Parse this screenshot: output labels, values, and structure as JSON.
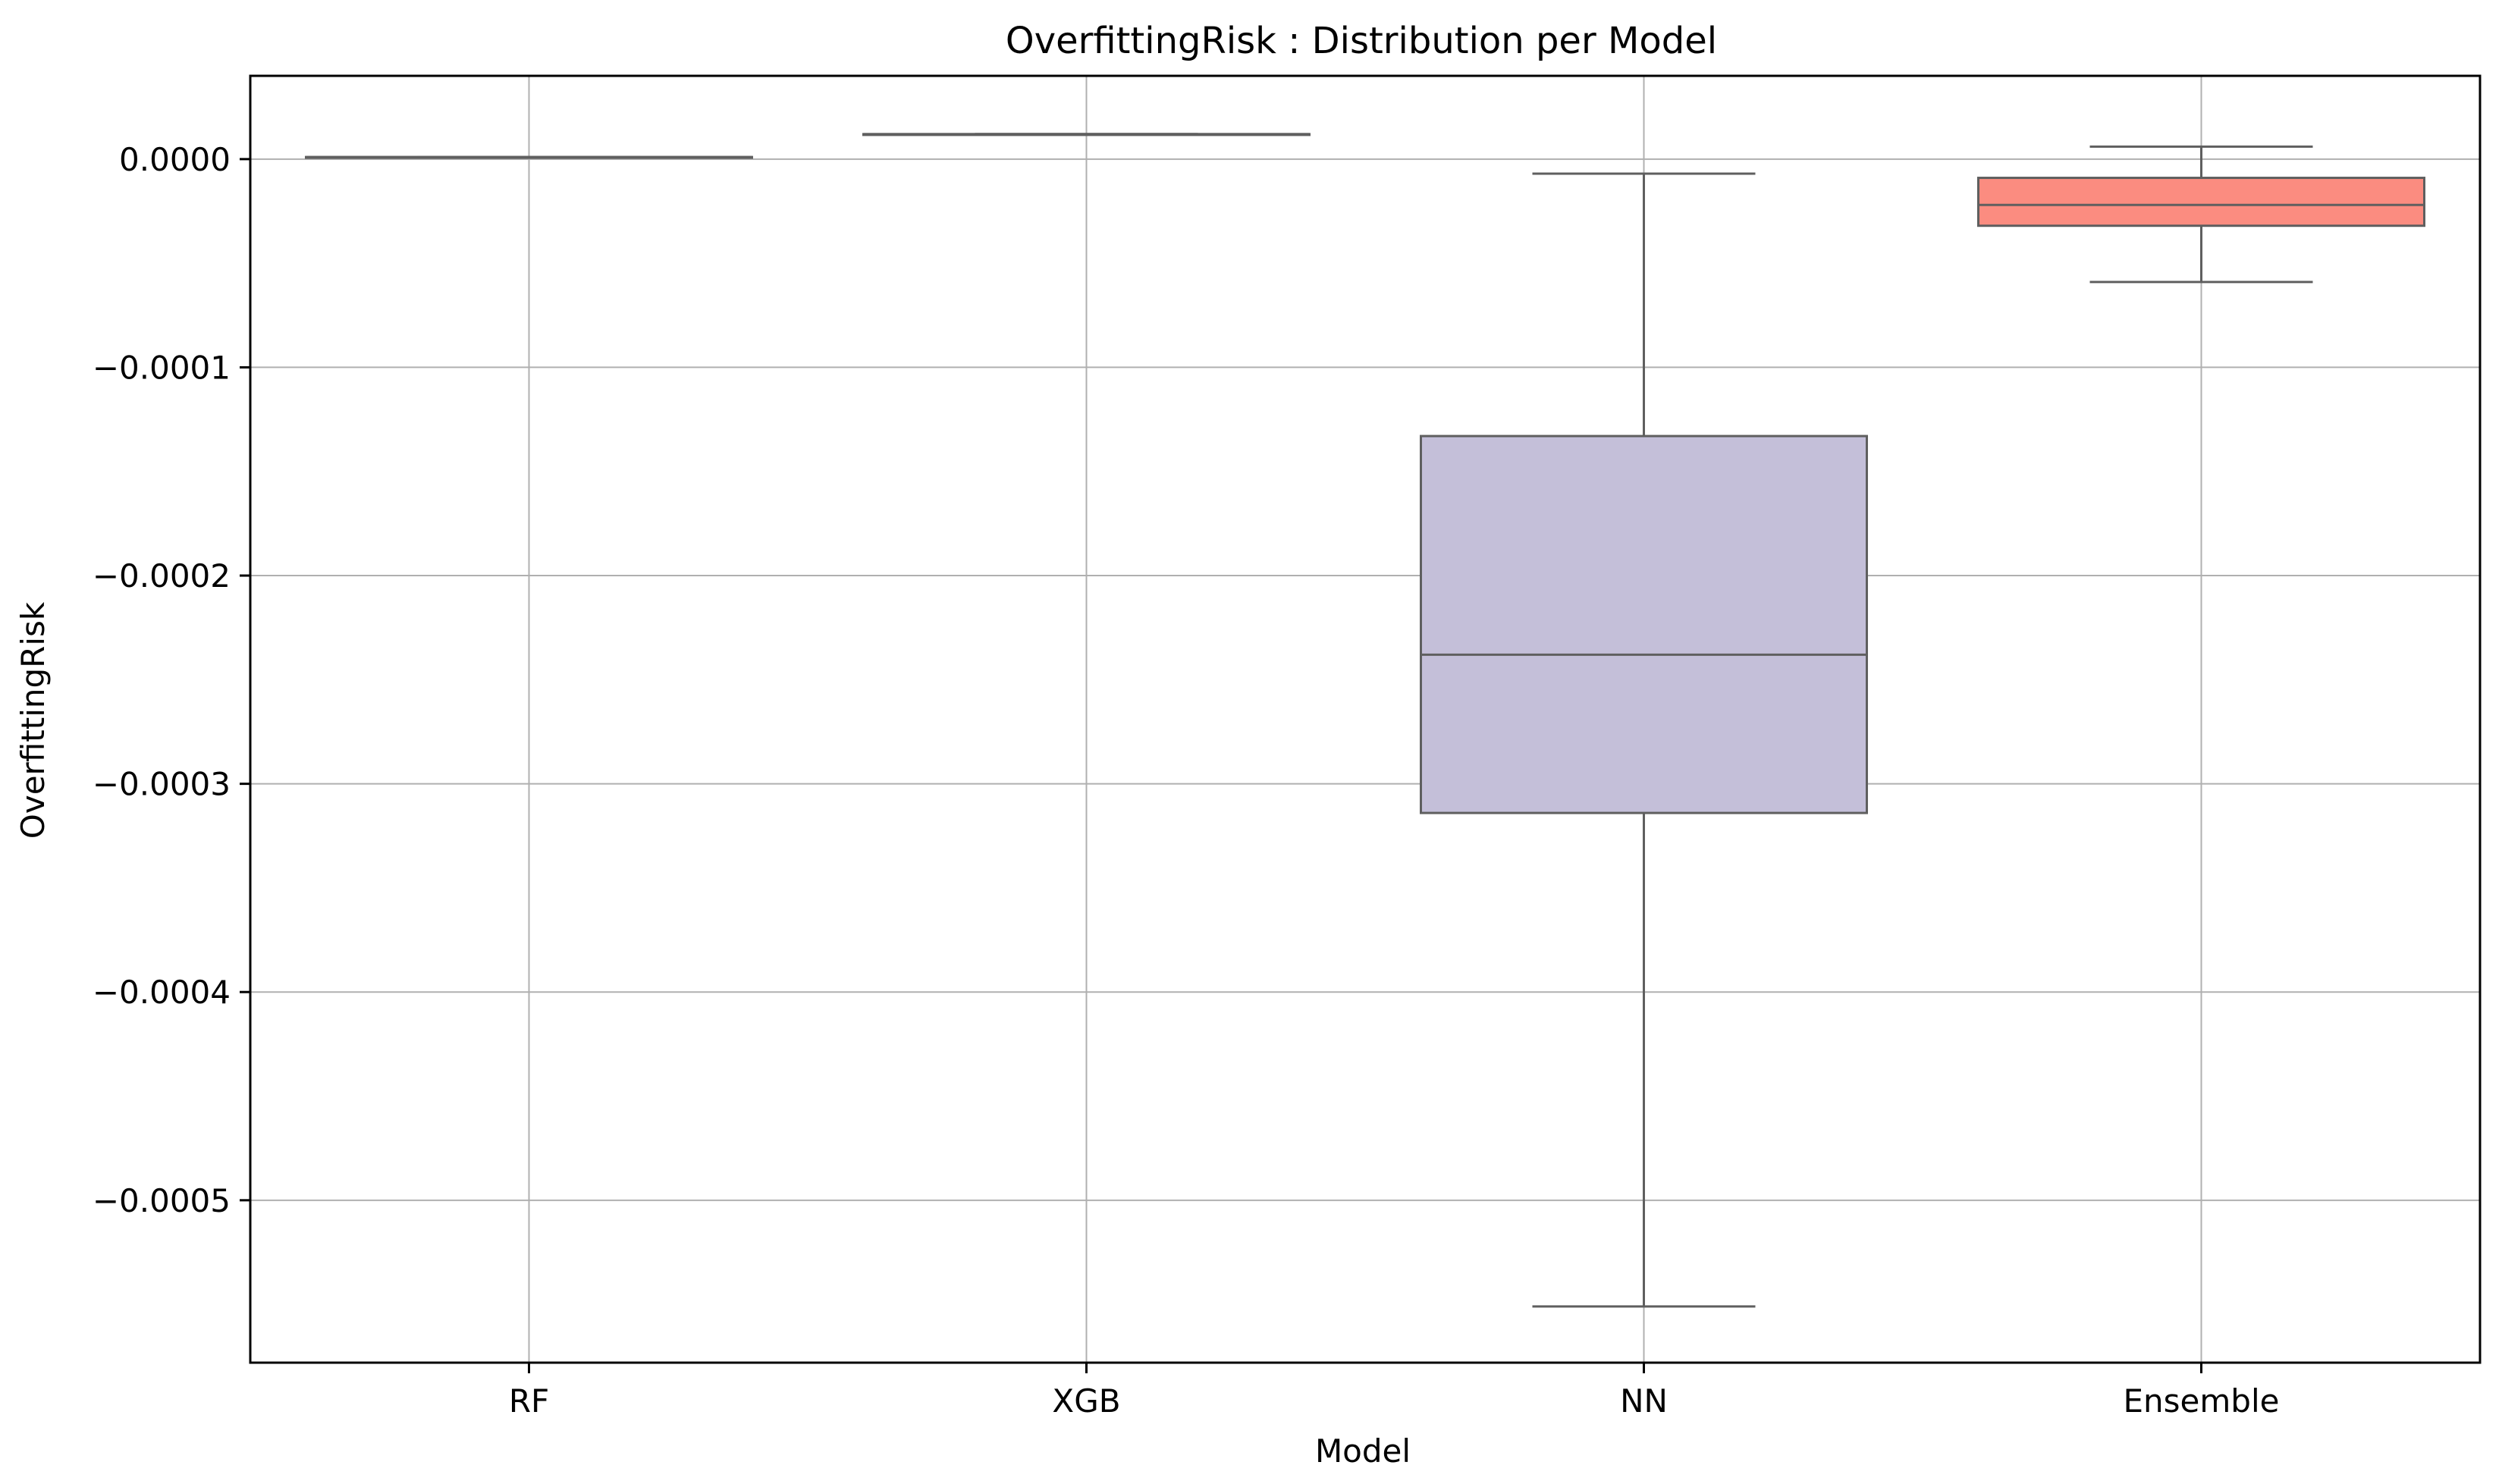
{
  "chart_data": {
    "type": "box",
    "title": "OverfittingRisk : Distribution per Model",
    "xlabel": "Model",
    "ylabel": "OverfittingRisk",
    "ylim": [
      -0.000578,
      4e-05
    ],
    "yticks": [
      0.0,
      -0.0001,
      -0.0002,
      -0.0003,
      -0.0004,
      -0.0005
    ],
    "ytick_labels": [
      "0.0000",
      "−0.0001",
      "−0.0002",
      "−0.0003",
      "−0.0004",
      "−0.0005"
    ],
    "grid": true,
    "categories": [
      "RF",
      "XGB",
      "NN",
      "Ensemble"
    ],
    "boxes": [
      {
        "category": "RF",
        "whisker_low": 1e-06,
        "q1": 1e-06,
        "median": 1e-06,
        "q3": 1e-06,
        "whisker_high": 1e-06,
        "color": "#8dd3c7"
      },
      {
        "category": "XGB",
        "whisker_low": 1.2e-05,
        "q1": 1.2e-05,
        "median": 1.2e-05,
        "q3": 1.2e-05,
        "whisker_high": 1.2e-05,
        "color": "#ffffb3"
      },
      {
        "category": "NN",
        "whisker_low": -0.000551,
        "q1": -0.000314,
        "median": -0.000238,
        "q3": -0.000133,
        "whisker_high": -7e-06,
        "color": "#c4bfd9"
      },
      {
        "category": "Ensemble",
        "whisker_low": -5.9e-05,
        "q1": -3.2e-05,
        "median": -2.2e-05,
        "q3": -9e-06,
        "whisker_high": 6e-06,
        "color": "#fb8c80"
      }
    ],
    "colors": {
      "box_edge": "#5f5f5f",
      "grid": "#b0b0b0",
      "axes": "#000000"
    }
  }
}
